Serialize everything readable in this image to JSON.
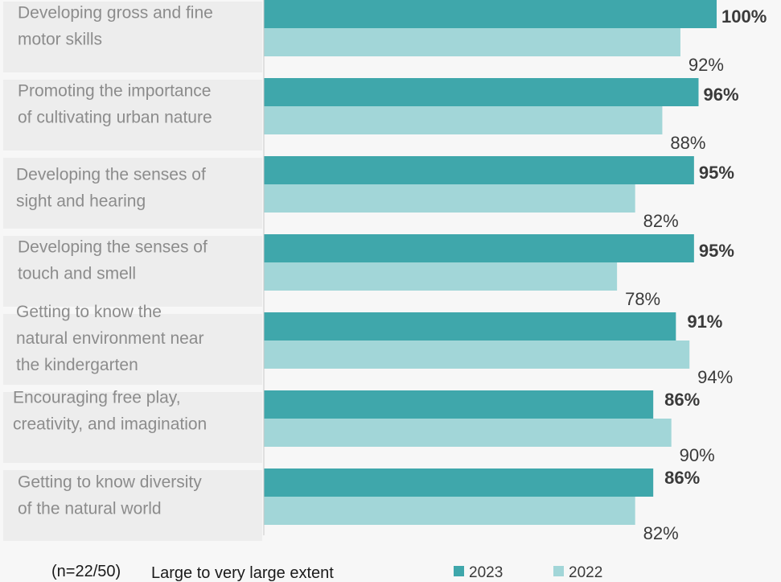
{
  "footer": {
    "sample_note": "(n=22/50)",
    "measure_label": "Large to very large extent"
  },
  "colors": {
    "series_2023": "#3fa7ab",
    "series_2022": "#a2d6d8",
    "category_box": "#ededed",
    "axis": "#c8c8c8"
  },
  "chart_data": {
    "type": "bar",
    "orientation": "horizontal",
    "xlim": [
      0,
      100
    ],
    "value_suffix": "%",
    "grid": false,
    "legend_position": "bottom",
    "categories": [
      [
        "Developing gross and fine",
        "motor skills"
      ],
      [
        "Promoting the importance",
        "of cultivating urban nature"
      ],
      [
        "Developing the senses of",
        "sight and hearing"
      ],
      [
        "Developing the senses of",
        "touch and smell"
      ],
      [
        "Getting to know the",
        "natural environment near",
        "the kindergarten"
      ],
      [
        "Encouraging free play,",
        "creativity, and imagination"
      ],
      [
        "Getting to know diversity",
        "of the natural world"
      ]
    ],
    "series": [
      {
        "name": "2023",
        "values": [
          100,
          96,
          95,
          95,
          91,
          86,
          86
        ]
      },
      {
        "name": "2022",
        "values": [
          92,
          88,
          82,
          78,
          94,
          90,
          82
        ]
      }
    ]
  }
}
